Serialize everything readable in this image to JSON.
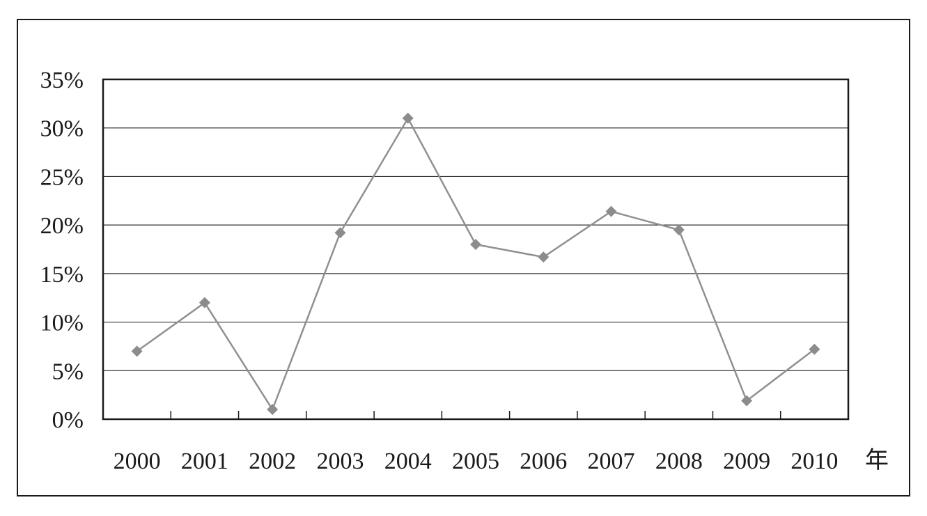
{
  "chart_data": {
    "type": "line",
    "title": "",
    "xlabel": "年",
    "ylabel": "",
    "categories": [
      "2000",
      "2001",
      "2002",
      "2003",
      "2004",
      "2005",
      "2006",
      "2007",
      "2008",
      "2009",
      "2010"
    ],
    "series": [
      {
        "values": [
          7.0,
          12.0,
          1.0,
          19.2,
          31.0,
          18.0,
          16.7,
          21.4,
          19.5,
          1.9,
          7.2
        ]
      }
    ],
    "ylim": [
      0,
      35
    ],
    "y_ticks": [
      0,
      5,
      10,
      15,
      20,
      25,
      30,
      35
    ],
    "y_tick_labels": [
      "0%",
      "5%",
      "10%",
      "15%",
      "20%",
      "25%",
      "30%",
      "35%"
    ],
    "grid": true,
    "legend": "none",
    "colors": {
      "line": "#909090",
      "marker": "#8c8c8c",
      "axis": "#1a1a1a",
      "grid": "#333333"
    },
    "marker": "diamond"
  }
}
